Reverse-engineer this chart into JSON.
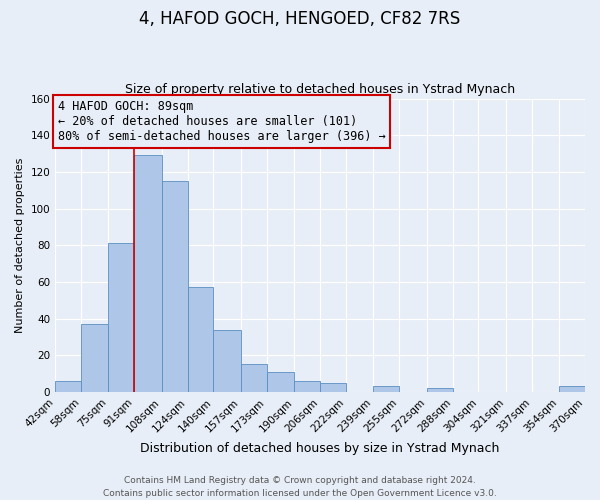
{
  "title": "4, HAFOD GOCH, HENGOED, CF82 7RS",
  "subtitle": "Size of property relative to detached houses in Ystrad Mynach",
  "xlabel": "Distribution of detached houses by size in Ystrad Mynach",
  "ylabel": "Number of detached properties",
  "bin_labels": [
    "42sqm",
    "58sqm",
    "75sqm",
    "91sqm",
    "108sqm",
    "124sqm",
    "140sqm",
    "157sqm",
    "173sqm",
    "190sqm",
    "206sqm",
    "222sqm",
    "239sqm",
    "255sqm",
    "272sqm",
    "288sqm",
    "304sqm",
    "321sqm",
    "337sqm",
    "354sqm",
    "370sqm"
  ],
  "bin_edges": [
    42,
    58,
    75,
    91,
    108,
    124,
    140,
    157,
    173,
    190,
    206,
    222,
    239,
    255,
    272,
    288,
    304,
    321,
    337,
    354,
    370
  ],
  "bar_heights": [
    6,
    37,
    81,
    129,
    115,
    57,
    34,
    15,
    11,
    6,
    5,
    0,
    3,
    0,
    2,
    0,
    0,
    0,
    0,
    3
  ],
  "bar_color": "#aec6e8",
  "bar_edge_color": "#5a8fc2",
  "vline_x": 91,
  "vline_color": "#cc0000",
  "ylim": [
    0,
    160
  ],
  "yticks": [
    0,
    20,
    40,
    60,
    80,
    100,
    120,
    140,
    160
  ],
  "annotation_line1": "4 HAFOD GOCH: 89sqm",
  "annotation_line2": "← 20% of detached houses are smaller (101)",
  "annotation_line3": "80% of semi-detached houses are larger (396) →",
  "annotation_box_edge_color": "#cc0000",
  "footer_line1": "Contains HM Land Registry data © Crown copyright and database right 2024.",
  "footer_line2": "Contains public sector information licensed under the Open Government Licence v3.0.",
  "background_color": "#e8eef7",
  "grid_color": "#ffffff",
  "title_fontsize": 12,
  "subtitle_fontsize": 9,
  "xlabel_fontsize": 9,
  "ylabel_fontsize": 8,
  "tick_fontsize": 7.5,
  "annotation_fontsize": 8.5,
  "footer_fontsize": 6.5
}
